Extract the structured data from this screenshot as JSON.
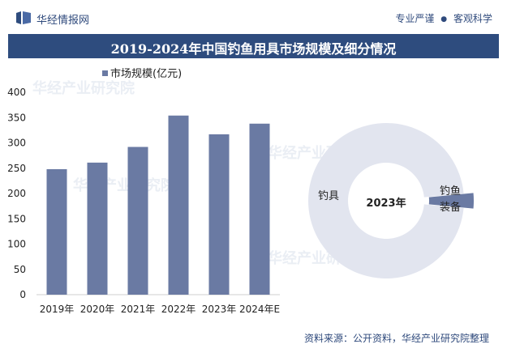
{
  "header": {
    "brand": "华经情报网",
    "tag1": "专业严谨",
    "tag2": "客观科学"
  },
  "title": "2019-2024年中国钓鱼用具市场规模及细分情况",
  "chart_data": [
    {
      "type": "bar",
      "categories": [
        "2019年",
        "2020年",
        "2021年",
        "2022年",
        "2023年",
        "2024年E"
      ],
      "series": [
        {
          "name": "市场规模(亿元)",
          "values": [
            248,
            261,
            292,
            354,
            317,
            338
          ]
        }
      ],
      "ylim": [
        0,
        400
      ],
      "yticks": [
        0,
        50,
        100,
        150,
        200,
        250,
        300,
        350,
        400
      ],
      "color": "#6a7aa3",
      "legend": "top-left"
    },
    {
      "type": "pie",
      "title": "2023年",
      "labels": [
        "钓具",
        "钓鱼装备"
      ],
      "values": [
        97,
        3
      ],
      "colors": [
        "#e2e5ef",
        "#6a7aa3"
      ]
    }
  ],
  "watermark": "华经产业研究院",
  "watermark_url": "www.huaon.com",
  "source": "资料来源：公开资料，华经产业研究院整理"
}
